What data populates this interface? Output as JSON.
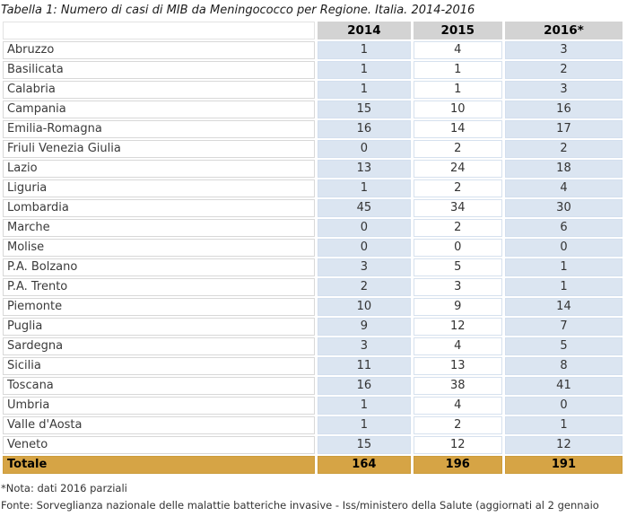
{
  "title": "Tabella 1: Numero di casi di MIB da Meningococco per Regione. Italia. 2014-2016",
  "colors": {
    "header_bg": "#d3d3d3",
    "cell_blue": "#dbe5f1",
    "total_bg": "#d6a445",
    "text": "#333333"
  },
  "chart_data": {
    "type": "table",
    "title": "Tabella 1: Numero di casi di MIB da Meningococco per Regione. Italia. 2014-2016",
    "categories": [
      "Abruzzo",
      "Basilicata",
      "Calabria",
      "Campania",
      "Emilia-Romagna",
      "Friuli Venezia Giulia",
      "Lazio",
      "Liguria",
      "Lombardia",
      "Marche",
      "Molise",
      "P.A. Bolzano",
      "P.A. Trento",
      "Piemonte",
      "Puglia",
      "Sardegna",
      "Sicilia",
      "Toscana",
      "Umbria",
      "Valle d'Aosta",
      "Veneto"
    ],
    "series": [
      {
        "name": "2014",
        "values": [
          1,
          1,
          1,
          15,
          16,
          0,
          13,
          1,
          45,
          0,
          0,
          3,
          2,
          10,
          9,
          3,
          11,
          16,
          1,
          1,
          15
        ]
      },
      {
        "name": "2015",
        "values": [
          4,
          1,
          1,
          10,
          14,
          2,
          24,
          2,
          34,
          2,
          0,
          5,
          3,
          9,
          12,
          4,
          13,
          38,
          4,
          2,
          12
        ]
      },
      {
        "name": "2016*",
        "values": [
          3,
          2,
          3,
          16,
          17,
          2,
          18,
          4,
          30,
          6,
          0,
          1,
          1,
          14,
          7,
          5,
          8,
          41,
          0,
          1,
          12
        ]
      }
    ],
    "totals": {
      "label": "Totale",
      "values": [
        164,
        196,
        191
      ]
    },
    "notes": [
      "*Nota: dati 2016 parziali",
      "Fonte: Sorveglianza nazionale delle malattie batteriche invasive - Iss/ministero della Salute (aggiornati al 2 gennaio"
    ]
  }
}
